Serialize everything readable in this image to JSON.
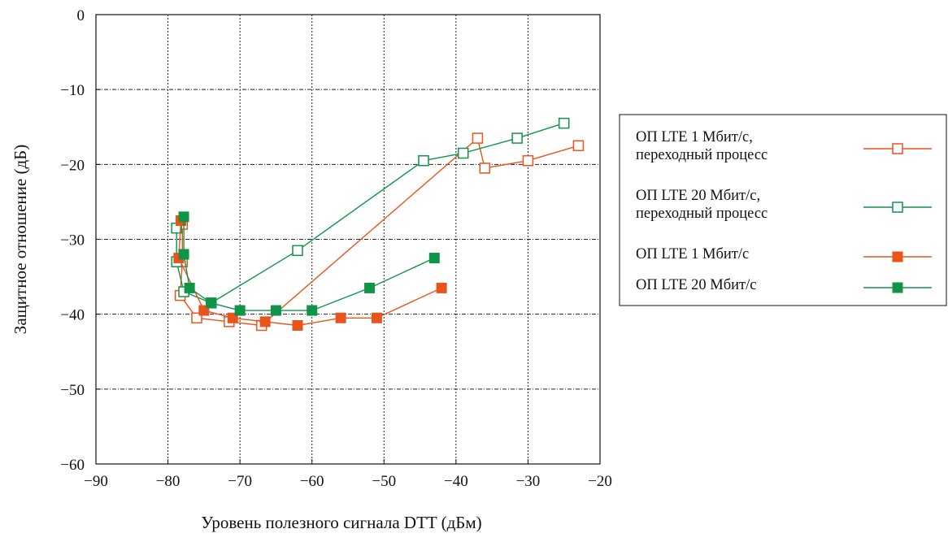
{
  "chart_data": {
    "type": "line",
    "xlabel": "Уровень полезного сигнала DTT (дБм)",
    "ylabel": "Защитное отношение (дБ)",
    "xlim": [
      -90,
      -20
    ],
    "ylim": [
      -60,
      0
    ],
    "xticks": [
      -90,
      -80,
      -70,
      -60,
      -50,
      -40,
      -30,
      -20
    ],
    "yticks": [
      0,
      -10,
      -20,
      -30,
      -40,
      -50,
      -60
    ],
    "xtick_labels": [
      "−90",
      "−80",
      "−70",
      "−60",
      "−50",
      "−40",
      "−30",
      "−20"
    ],
    "ytick_labels": [
      "0",
      "−10",
      "−20",
      "−30",
      "−40",
      "−50",
      "−60"
    ],
    "grid": true,
    "legend_position": "right",
    "series": [
      {
        "name_lines": [
          "ОП LTE 1 Мбит/с,",
          "переходный процесс"
        ],
        "color": "#e8541c",
        "marker": "square-open",
        "points": [
          [
            -78,
            -28
          ],
          [
            -78,
            -33
          ],
          [
            -78.3,
            -37.5
          ],
          [
            -76,
            -40.5
          ],
          [
            -71.5,
            -41
          ],
          [
            -67,
            -41.5
          ],
          [
            -37,
            -16.5
          ],
          [
            -36,
            -20.5
          ],
          [
            -30,
            -19.5
          ],
          [
            -23,
            -17.5
          ]
        ]
      },
      {
        "name_lines": [
          "ОП LTE 20 Мбит/с,",
          "переходный процесс"
        ],
        "color": "#109448",
        "marker": "square-open",
        "points": [
          [
            -78.8,
            -28.5
          ],
          [
            -78.8,
            -33
          ],
          [
            -77.8,
            -37
          ],
          [
            -74,
            -38.5
          ],
          [
            -62,
            -31.5
          ],
          [
            -44.5,
            -19.5
          ],
          [
            -39,
            -18.5
          ],
          [
            -31.5,
            -16.5
          ],
          [
            -25,
            -14.5
          ]
        ]
      },
      {
        "name_lines": [
          "ОП LTE 1 Мбит/с"
        ],
        "color": "#e8541c",
        "marker": "square-filled",
        "points": [
          [
            -78.2,
            -27.5
          ],
          [
            -78.5,
            -32.5
          ],
          [
            -75,
            -39.5
          ],
          [
            -71,
            -40.5
          ],
          [
            -66.5,
            -41
          ],
          [
            -62,
            -41.5
          ],
          [
            -56,
            -40.5
          ],
          [
            -51,
            -40.5
          ],
          [
            -42,
            -36.5
          ]
        ]
      },
      {
        "name_lines": [
          "ОП LTE 20 Мбит/с"
        ],
        "color": "#109448",
        "marker": "square-filled",
        "points": [
          [
            -77.8,
            -27
          ],
          [
            -77.8,
            -32
          ],
          [
            -77,
            -36.5
          ],
          [
            -74,
            -38.5
          ],
          [
            -70,
            -39.5
          ],
          [
            -65,
            -39.5
          ],
          [
            -60,
            -39.5
          ],
          [
            -52,
            -36.5
          ],
          [
            -43,
            -32.5
          ]
        ]
      }
    ]
  }
}
